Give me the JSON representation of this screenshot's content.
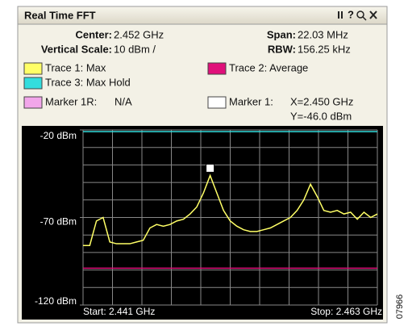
{
  "title": "Real Time FFT",
  "toolbar_help": "?",
  "info": {
    "center_label": "Center:",
    "center": "2.452 GHz",
    "span_label": "Span:",
    "span": "22.03 MHz",
    "vscale_label": "Vertical Scale:",
    "vscale": "10 dBm /",
    "rbw_label": "RBW:",
    "rbw": "156.25 kHz"
  },
  "markers": [
    {
      "name": "Marker 1R:",
      "color": "#f2a6ea",
      "value": "N/A"
    },
    {
      "name": "Marker 1:",
      "color": "#ffffff",
      "x": "X=2.450 GHz",
      "y": "Y=-46.0 dBm"
    }
  ],
  "chart_data": {
    "type": "line",
    "x": [
      2.441,
      2.4415,
      2.442,
      2.4425,
      2.443,
      2.4435,
      2.444,
      2.4445,
      2.445,
      2.4455,
      2.446,
      2.4465,
      2.447,
      2.4475,
      2.448,
      2.4485,
      2.449,
      2.4495,
      2.45,
      2.4505,
      2.451,
      2.4515,
      2.452,
      2.4525,
      2.453,
      2.4535,
      2.454,
      2.4545,
      2.455,
      2.4555,
      2.456,
      2.4565,
      2.457,
      2.4575,
      2.458,
      2.4585,
      2.459,
      2.4595,
      2.46,
      2.4605,
      2.461,
      2.4615,
      2.462,
      2.4625,
      2.463
    ],
    "series": [
      {
        "name": "Trace 1: Max",
        "color": "#ffff66",
        "values": [
          -86,
          -86,
          -72,
          -70,
          -84,
          -85,
          -85,
          -85,
          -84,
          -83,
          -76,
          -74,
          -75,
          -74,
          -72,
          -71,
          -68,
          -64,
          -56,
          -46,
          -56,
          -66,
          -72,
          -75,
          -77,
          -78,
          -78,
          -77,
          -76,
          -74,
          -72,
          -70,
          -66,
          -60,
          -51,
          -58,
          -66,
          -67,
          -66,
          -68,
          -67,
          -71,
          -67,
          -70,
          -68
        ]
      },
      {
        "name": "Trace 2: Average",
        "color": "#e0107a",
        "values": [
          -99,
          -99,
          -99,
          -99,
          -99,
          -99,
          -99,
          -99,
          -99,
          -99,
          -99,
          -99,
          -99,
          -99,
          -99,
          -99,
          -99,
          -99,
          -99,
          -99,
          -99,
          -99,
          -99,
          -99,
          -99,
          -99,
          -99,
          -99,
          -99,
          -99,
          -99,
          -99,
          -99,
          -99,
          -99,
          -99,
          -99,
          -99,
          -99,
          -99,
          -99,
          -99,
          -99,
          -99,
          -99
        ]
      },
      {
        "name": "Trace 3: Max Hold",
        "color": "#33dddd",
        "values": [
          -21,
          -21,
          -21,
          -21,
          -21,
          -21,
          -21,
          -21,
          -21,
          -21,
          -21,
          -21,
          -21,
          -21,
          -21,
          -21,
          -21,
          -21,
          -21,
          -21,
          -21,
          -21,
          -21,
          -21,
          -21,
          -21,
          -21,
          -21,
          -21,
          -21,
          -21,
          -21,
          -21,
          -21,
          -21,
          -21,
          -21,
          -21,
          -21,
          -21,
          -21,
          -21,
          -21,
          -21,
          -21
        ]
      }
    ],
    "xlim": [
      2.441,
      2.463
    ],
    "ylim": [
      -120,
      -20
    ],
    "yticks": [
      {
        "value": -20,
        "label": "-20 dBm"
      },
      {
        "value": -70,
        "label": "-70 dBm"
      },
      {
        "value": -120,
        "label": "-120 dBm"
      }
    ],
    "start_label": "Start: 2.441 GHz",
    "stop_label": "Stop: 2.463 GHz"
  },
  "figure_id": "07966"
}
